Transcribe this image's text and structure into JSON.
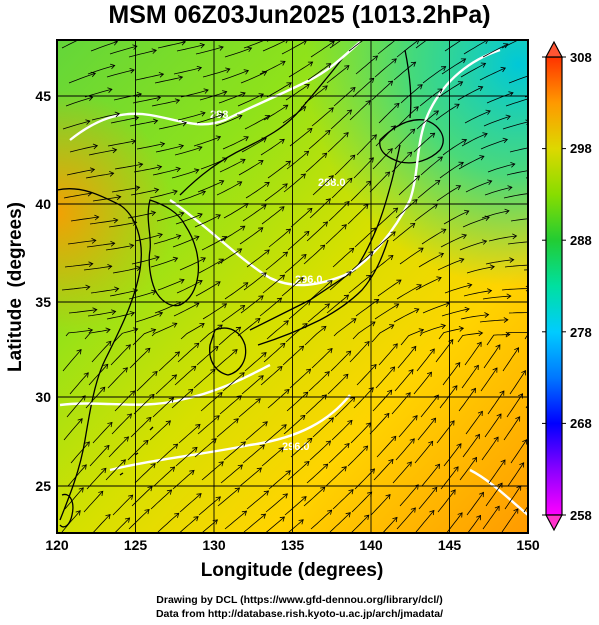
{
  "title": "MSM 06Z03Jun2025 (1013.2hPa)",
  "map": {
    "xlabel": "Longitude (degrees)",
    "ylabel": "Latitude  (degrees)",
    "x_ticks": [
      "120",
      "125",
      "130",
      "135",
      "140",
      "145",
      "150"
    ],
    "y_ticks": [
      "25",
      "30",
      "35",
      "40",
      "45"
    ],
    "lon_range": [
      120,
      150
    ],
    "lat_range": [
      22.4,
      47.6
    ],
    "contour_labels": [
      "296.0",
      "288.0",
      "288",
      "296.0"
    ],
    "field": "temperature (K) with wind streamlines"
  },
  "colorbar": {
    "tick_labels": [
      "308",
      "298",
      "288",
      "278",
      "268",
      "258"
    ],
    "range": [
      258,
      308
    ],
    "colors": [
      "#ff00ff",
      "#8800ff",
      "#0000ff",
      "#0066ff",
      "#00ccff",
      "#00e5aa",
      "#22cc33",
      "#77dd00",
      "#ccdd00",
      "#ffcc00",
      "#ff8800",
      "#ff3300"
    ]
  },
  "credits": {
    "line1": "Drawing by DCL (https://www.gfd-dennou.org/library/dcl/)",
    "line2": "Data from http://database.rish.kyoto-u.ac.jp/arch/jmadata/"
  }
}
